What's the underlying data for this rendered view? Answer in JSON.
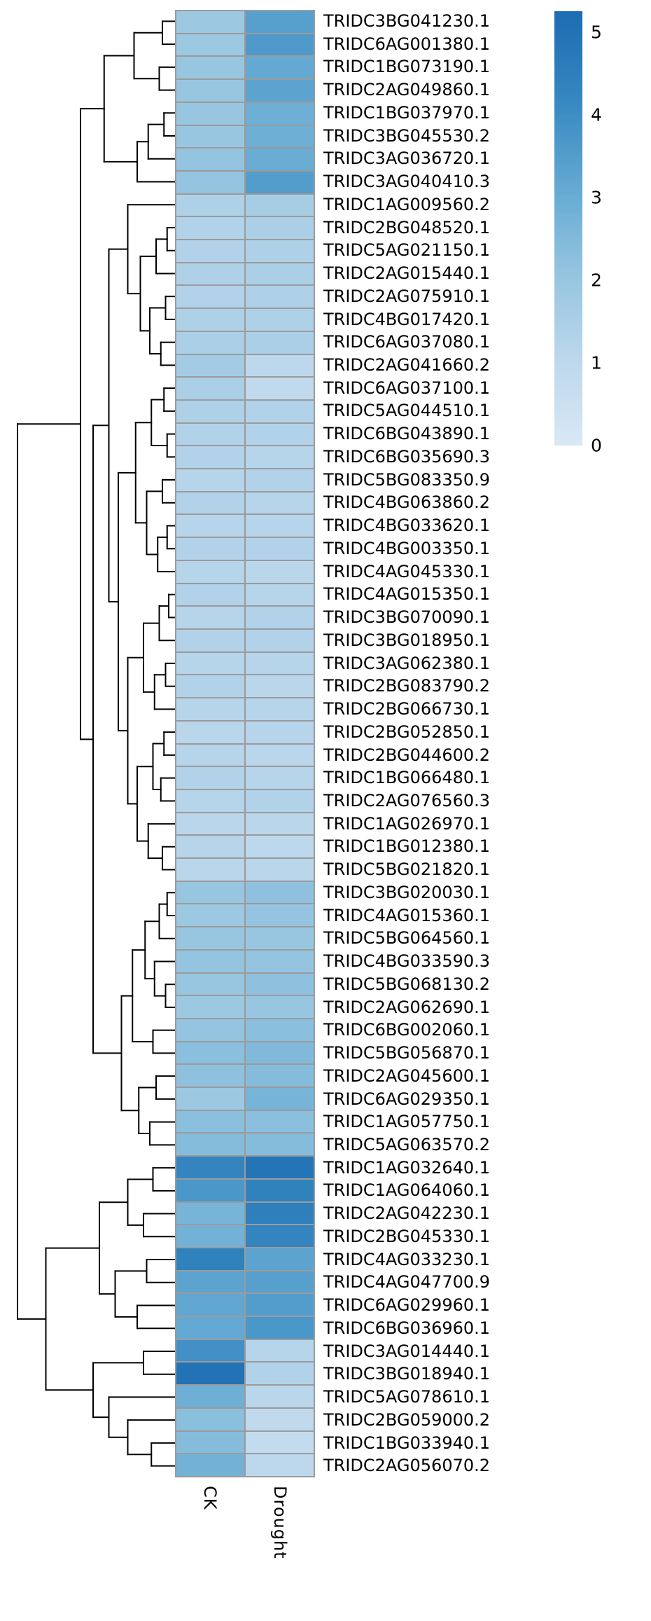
{
  "figure": {
    "background": "#ffffff"
  },
  "chart_data": {
    "type": "heatmap",
    "title": "",
    "legend_position": "right",
    "columns": [
      "CK",
      "Drought"
    ],
    "rows": [
      "TRIDC3BG041230.1",
      "TRIDC6AG001380.1",
      "TRIDC1BG073190.1",
      "TRIDC2AG049860.1",
      "TRIDC1BG037970.1",
      "TRIDC3BG045530.2",
      "TRIDC3AG036720.1",
      "TRIDC3AG040410.3",
      "TRIDC1AG009560.2",
      "TRIDC2BG048520.1",
      "TRIDC5AG021150.1",
      "TRIDC2AG015440.1",
      "TRIDC2AG075910.1",
      "TRIDC4BG017420.1",
      "TRIDC6AG037080.1",
      "TRIDC2AG041660.2",
      "TRIDC6AG037100.1",
      "TRIDC5AG044510.1",
      "TRIDC6BG043890.1",
      "TRIDC6BG035690.3",
      "TRIDC5BG083350.9",
      "TRIDC4BG063860.2",
      "TRIDC4BG033620.1",
      "TRIDC4BG003350.1",
      "TRIDC4AG045330.1",
      "TRIDC4AG015350.1",
      "TRIDC3BG070090.1",
      "TRIDC3BG018950.1",
      "TRIDC3AG062380.1",
      "TRIDC2BG083790.2",
      "TRIDC2BG066730.1",
      "TRIDC2BG052850.1",
      "TRIDC2BG044600.2",
      "TRIDC1BG066480.1",
      "TRIDC2AG076560.3",
      "TRIDC1AG026970.1",
      "TRIDC1BG012380.1",
      "TRIDC5BG021820.1",
      "TRIDC3BG020030.1",
      "TRIDC4AG015360.1",
      "TRIDC5BG064560.1",
      "TRIDC4BG033590.3",
      "TRIDC5BG068130.2",
      "TRIDC2AG062690.1",
      "TRIDC6BG002060.1",
      "TRIDC5BG056870.1",
      "TRIDC2AG045600.1",
      "TRIDC6AG029350.1",
      "TRIDC1AG057750.1",
      "TRIDC5AG063570.2",
      "TRIDC1AG032640.1",
      "TRIDC1AG064060.1",
      "TRIDC2AG042230.1",
      "TRIDC2BG045330.1",
      "TRIDC4AG033230.1",
      "TRIDC4AG047700.9",
      "TRIDC6AG029960.1",
      "TRIDC6BG036960.1",
      "TRIDC3AG014440.1",
      "TRIDC3BG018940.1",
      "TRIDC5AG078610.1",
      "TRIDC2BG059000.2",
      "TRIDC1BG033940.1",
      "TRIDC2AG056070.2"
    ],
    "values": [
      [
        1.9,
        3.4
      ],
      [
        1.9,
        3.6
      ],
      [
        2.0,
        3.1
      ],
      [
        2.0,
        3.3
      ],
      [
        2.0,
        2.9
      ],
      [
        2.0,
        2.9
      ],
      [
        2.1,
        3.0
      ],
      [
        2.1,
        3.5
      ],
      [
        1.4,
        1.6
      ],
      [
        1.3,
        1.5
      ],
      [
        1.3,
        1.4
      ],
      [
        1.4,
        1.5
      ],
      [
        1.3,
        1.4
      ],
      [
        1.4,
        1.4
      ],
      [
        1.5,
        1.5
      ],
      [
        1.7,
        1.0
      ],
      [
        1.5,
        0.9
      ],
      [
        1.4,
        1.3
      ],
      [
        1.3,
        1.3
      ],
      [
        1.3,
        1.2
      ],
      [
        1.2,
        1.3
      ],
      [
        1.3,
        1.2
      ],
      [
        1.2,
        1.2
      ],
      [
        1.3,
        1.3
      ],
      [
        1.2,
        1.1
      ],
      [
        1.3,
        1.2
      ],
      [
        1.2,
        1.3
      ],
      [
        1.3,
        1.3
      ],
      [
        1.2,
        1.2
      ],
      [
        1.3,
        1.1
      ],
      [
        1.2,
        1.2
      ],
      [
        1.1,
        1.2
      ],
      [
        1.2,
        1.1
      ],
      [
        1.3,
        1.2
      ],
      [
        1.2,
        1.3
      ],
      [
        1.1,
        1.1
      ],
      [
        1.2,
        1.0
      ],
      [
        1.1,
        1.1
      ],
      [
        2.0,
        2.2
      ],
      [
        1.9,
        2.1
      ],
      [
        2.0,
        2.0
      ],
      [
        2.1,
        2.1
      ],
      [
        2.0,
        2.2
      ],
      [
        1.9,
        2.0
      ],
      [
        2.1,
        2.3
      ],
      [
        2.3,
        2.5
      ],
      [
        2.2,
        2.4
      ],
      [
        1.9,
        2.7
      ],
      [
        2.3,
        2.3
      ],
      [
        2.4,
        2.4
      ],
      [
        4.3,
        4.9
      ],
      [
        3.7,
        4.4
      ],
      [
        2.7,
        4.5
      ],
      [
        2.8,
        4.3
      ],
      [
        4.4,
        3.3
      ],
      [
        3.3,
        3.4
      ],
      [
        3.2,
        3.5
      ],
      [
        3.1,
        3.7
      ],
      [
        3.9,
        1.2
      ],
      [
        5.0,
        1.3
      ],
      [
        2.9,
        1.1
      ],
      [
        2.3,
        0.9
      ],
      [
        2.4,
        0.8
      ],
      [
        2.8,
        1.0
      ]
    ],
    "color_scale": {
      "vmin": 0,
      "vmax": 5.25,
      "ticks": [
        0,
        1,
        2,
        3,
        4,
        5
      ],
      "stops": [
        {
          "t": 0.0,
          "color": "#d9e8f5"
        },
        {
          "t": 0.2,
          "color": "#bcd7ec"
        },
        {
          "t": 0.4,
          "color": "#94c4df"
        },
        {
          "t": 0.6,
          "color": "#62a8d2"
        },
        {
          "t": 0.8,
          "color": "#3587c0"
        },
        {
          "t": 1.0,
          "color": "#1c6cb1"
        }
      ]
    },
    "colors": {
      "dendrogram": "#000000",
      "grid": "#9b9b9b",
      "text": "#000000"
    },
    "dendrogram": {
      "h": 1.0,
      "c": [
        {
          "h": 0.6,
          "c": [
            {
              "h": 0.45,
              "c": [
                {
                  "h": 0.26,
                  "c": [
                    {
                      "h": 0.08,
                      "c": [
                        0,
                        1
                      ]
                    },
                    {
                      "h": 0.1,
                      "c": [
                        2,
                        3
                      ]
                    }
                  ]
                },
                {
                  "h": 0.24,
                  "c": [
                    {
                      "h": 0.17,
                      "c": [
                        {
                          "h": 0.07,
                          "c": [
                            4,
                            5
                          ]
                        },
                        6
                      ]
                    },
                    7
                  ]
                }
              ]
            },
            {
              "h": 0.52,
              "c": [
                {
                  "h": 0.42,
                  "c": [
                    {
                      "h": 0.3,
                      "c": [
                        8,
                        {
                          "h": 0.22,
                          "c": [
                            {
                              "h": 0.12,
                              "c": [
                                {
                                  "h": 0.05,
                                  "c": [
                                    9,
                                    10
                                  ]
                                },
                                11
                              ]
                            },
                            {
                              "h": 0.16,
                              "c": [
                                {
                                  "h": 0.06,
                                  "c": [
                                    12,
                                    13
                                  ]
                                },
                                {
                                  "h": 0.09,
                                  "c": [
                                    14,
                                    15
                                  ]
                                }
                              ]
                            }
                          ]
                        }
                      ]
                    },
                    {
                      "h": 0.36,
                      "c": [
                        {
                          "h": 0.25,
                          "c": [
                            {
                              "h": 0.15,
                              "c": [
                                {
                                  "h": 0.07,
                                  "c": [
                                    16,
                                    17
                                  ]
                                },
                                {
                                  "h": 0.05,
                                  "c": [
                                    18,
                                    19
                                  ]
                                }
                              ]
                            },
                            {
                              "h": 0.18,
                              "c": [
                                {
                                  "h": 0.08,
                                  "c": [
                                    20,
                                    21
                                  ]
                                },
                                {
                                  "h": 0.11,
                                  "c": [
                                    {
                                      "h": 0.05,
                                      "c": [
                                        22,
                                        23
                                      ]
                                    },
                                    24
                                  ]
                                }
                              ]
                            }
                          ]
                        },
                        {
                          "h": 0.3,
                          "c": [
                            {
                              "h": 0.2,
                              "c": [
                                {
                                  "h": 0.1,
                                  "c": [
                                    {
                                      "h": 0.04,
                                      "c": [
                                        25,
                                        26
                                      ]
                                    },
                                    27
                                  ]
                                },
                                {
                                  "h": 0.13,
                                  "c": [
                                    {
                                      "h": 0.06,
                                      "c": [
                                        28,
                                        29
                                      ]
                                    },
                                    30
                                  ]
                                }
                              ]
                            },
                            {
                              "h": 0.24,
                              "c": [
                                {
                                  "h": 0.14,
                                  "c": [
                                    {
                                      "h": 0.07,
                                      "c": [
                                        31,
                                        32
                                      ]
                                    },
                                    {
                                      "h": 0.09,
                                      "c": [
                                        33,
                                        34
                                      ]
                                    }
                                  ]
                                },
                                {
                                  "h": 0.17,
                                  "c": [
                                    35,
                                    {
                                      "h": 0.08,
                                      "c": [
                                        36,
                                        37
                                      ]
                                    }
                                  ]
                                }
                              ]
                            }
                          ]
                        }
                      ]
                    }
                  ]
                },
                {
                  "h": 0.34,
                  "c": [
                    {
                      "h": 0.27,
                      "c": [
                        {
                          "h": 0.19,
                          "c": [
                            {
                              "h": 0.1,
                              "c": [
                                {
                                  "h": 0.05,
                                  "c": [
                                    38,
                                    39
                                  ]
                                },
                                40
                              ]
                            },
                            {
                              "h": 0.13,
                              "c": [
                                41,
                                {
                                  "h": 0.06,
                                  "c": [
                                    42,
                                    43
                                  ]
                                }
                              ]
                            }
                          ]
                        },
                        {
                          "h": 0.14,
                          "c": [
                            44,
                            45
                          ]
                        }
                      ]
                    },
                    {
                      "h": 0.23,
                      "c": [
                        {
                          "h": 0.12,
                          "c": [
                            46,
                            47
                          ]
                        },
                        {
                          "h": 0.16,
                          "c": [
                            48,
                            49
                          ]
                        }
                      ]
                    }
                  ]
                }
              ]
            }
          ]
        },
        {
          "h": 0.82,
          "c": [
            {
              "h": 0.48,
              "c": [
                {
                  "h": 0.3,
                  "c": [
                    {
                      "h": 0.14,
                      "c": [
                        50,
                        51
                      ]
                    },
                    {
                      "h": 0.2,
                      "c": [
                        52,
                        53
                      ]
                    }
                  ]
                },
                {
                  "h": 0.38,
                  "c": [
                    {
                      "h": 0.18,
                      "c": [
                        54,
                        55
                      ]
                    },
                    {
                      "h": 0.24,
                      "c": [
                        56,
                        57
                      ]
                    }
                  ]
                }
              ]
            },
            {
              "h": 0.52,
              "c": [
                {
                  "h": 0.2,
                  "c": [
                    58,
                    59
                  ]
                },
                {
                  "h": 0.42,
                  "c": [
                    60,
                    {
                      "h": 0.3,
                      "c": [
                        61,
                        {
                          "h": 0.15,
                          "c": [
                            62,
                            63
                          ]
                        }
                      ]
                    }
                  ]
                }
              ]
            }
          ]
        }
      ]
    }
  }
}
